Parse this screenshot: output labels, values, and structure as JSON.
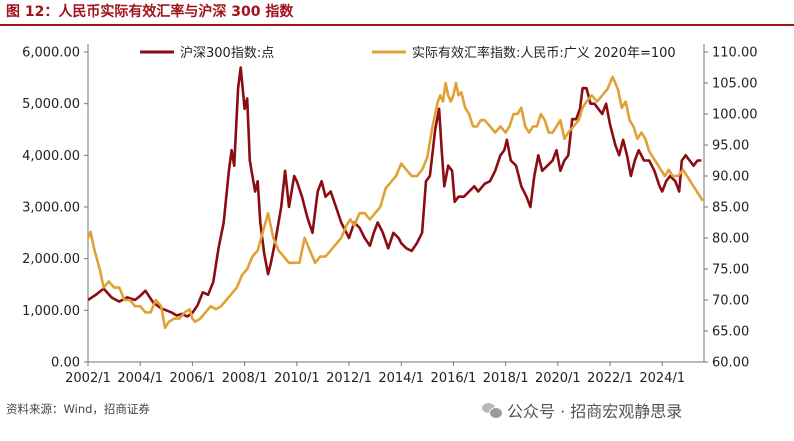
{
  "header": {
    "title": "图 12：人民币实际有效汇率与沪深 300 指数"
  },
  "footer": {
    "source": "资料来源：Wind，招商证券",
    "watermark": "公众号 · 招商宏观静思录",
    "watermark_icon": "wechat-icon"
  },
  "colors": {
    "hs300": "#8b0d12",
    "reer": "#e0a236",
    "title": "#a0141e"
  },
  "chart_data": {
    "type": "line",
    "title": "",
    "xlabel": "",
    "ylabel": "",
    "y2label": "",
    "grid": false,
    "legend_position": "top",
    "xlim": [
      2002.0,
      2025.6
    ],
    "ylim": [
      0,
      6000
    ],
    "y2lim": [
      60,
      110
    ],
    "x_ticks": [
      2002,
      2004,
      2006,
      2008,
      2010,
      2012,
      2014,
      2016,
      2018,
      2020,
      2022,
      2024
    ],
    "x_tick_labels": [
      "2002/1",
      "2004/1",
      "2006/1",
      "2008/1",
      "2010/1",
      "2012/1",
      "2014/1",
      "2016/1",
      "2018/1",
      "2020/1",
      "2022/1",
      "2024/1"
    ],
    "y_ticks": [
      0,
      1000,
      2000,
      3000,
      4000,
      5000,
      6000
    ],
    "y_tick_labels": [
      "0.00",
      "1,000.00",
      "2,000.00",
      "3,000.00",
      "4,000.00",
      "5,000.00",
      "6,000.00"
    ],
    "y2_ticks": [
      60,
      65,
      70,
      75,
      80,
      85,
      90,
      95,
      100,
      105,
      110
    ],
    "y2_tick_labels": [
      "60.00",
      "65.00",
      "70.00",
      "75.00",
      "80.00",
      "85.00",
      "90.00",
      "95.00",
      "100.00",
      "105.00",
      "110.00"
    ],
    "series": [
      {
        "name": "沪深300指数:点",
        "axis": "left",
        "color": "#8b0d12",
        "points": [
          [
            2002.0,
            1200
          ],
          [
            2002.3,
            1300
          ],
          [
            2002.6,
            1420
          ],
          [
            2002.9,
            1250
          ],
          [
            2003.2,
            1170
          ],
          [
            2003.5,
            1250
          ],
          [
            2003.8,
            1200
          ],
          [
            2004.0,
            1280
          ],
          [
            2004.2,
            1380
          ],
          [
            2004.5,
            1150
          ],
          [
            2004.8,
            1040
          ],
          [
            2005.0,
            1000
          ],
          [
            2005.2,
            960
          ],
          [
            2005.4,
            900
          ],
          [
            2005.6,
            930
          ],
          [
            2005.8,
            880
          ],
          [
            2006.0,
            950
          ],
          [
            2006.2,
            1100
          ],
          [
            2006.4,
            1350
          ],
          [
            2006.6,
            1300
          ],
          [
            2006.8,
            1550
          ],
          [
            2007.0,
            2200
          ],
          [
            2007.2,
            2700
          ],
          [
            2007.4,
            3700
          ],
          [
            2007.5,
            4100
          ],
          [
            2007.6,
            3800
          ],
          [
            2007.75,
            5300
          ],
          [
            2007.85,
            5700
          ],
          [
            2008.0,
            4900
          ],
          [
            2008.1,
            5100
          ],
          [
            2008.2,
            3900
          ],
          [
            2008.4,
            3300
          ],
          [
            2008.5,
            3500
          ],
          [
            2008.6,
            2700
          ],
          [
            2008.75,
            2100
          ],
          [
            2008.9,
            1700
          ],
          [
            2009.0,
            1900
          ],
          [
            2009.2,
            2400
          ],
          [
            2009.4,
            3000
          ],
          [
            2009.55,
            3700
          ],
          [
            2009.7,
            3000
          ],
          [
            2009.9,
            3600
          ],
          [
            2010.0,
            3500
          ],
          [
            2010.2,
            3200
          ],
          [
            2010.4,
            2800
          ],
          [
            2010.6,
            2500
          ],
          [
            2010.8,
            3300
          ],
          [
            2010.95,
            3500
          ],
          [
            2011.1,
            3200
          ],
          [
            2011.3,
            3300
          ],
          [
            2011.5,
            3000
          ],
          [
            2011.7,
            2700
          ],
          [
            2011.9,
            2500
          ],
          [
            2012.0,
            2400
          ],
          [
            2012.2,
            2700
          ],
          [
            2012.4,
            2600
          ],
          [
            2012.6,
            2400
          ],
          [
            2012.8,
            2250
          ],
          [
            2012.95,
            2500
          ],
          [
            2013.1,
            2700
          ],
          [
            2013.3,
            2500
          ],
          [
            2013.5,
            2200
          ],
          [
            2013.7,
            2500
          ],
          [
            2013.9,
            2400
          ],
          [
            2014.0,
            2300
          ],
          [
            2014.2,
            2200
          ],
          [
            2014.4,
            2150
          ],
          [
            2014.6,
            2300
          ],
          [
            2014.8,
            2500
          ],
          [
            2014.95,
            3500
          ],
          [
            2015.1,
            3600
          ],
          [
            2015.3,
            4500
          ],
          [
            2015.45,
            4900
          ],
          [
            2015.55,
            4100
          ],
          [
            2015.65,
            3400
          ],
          [
            2015.8,
            3800
          ],
          [
            2015.95,
            3700
          ],
          [
            2016.05,
            3100
          ],
          [
            2016.2,
            3200
          ],
          [
            2016.4,
            3200
          ],
          [
            2016.6,
            3300
          ],
          [
            2016.8,
            3400
          ],
          [
            2016.95,
            3300
          ],
          [
            2017.2,
            3450
          ],
          [
            2017.4,
            3500
          ],
          [
            2017.6,
            3700
          ],
          [
            2017.8,
            4000
          ],
          [
            2017.95,
            4100
          ],
          [
            2018.05,
            4300
          ],
          [
            2018.2,
            3900
          ],
          [
            2018.4,
            3800
          ],
          [
            2018.6,
            3400
          ],
          [
            2018.8,
            3200
          ],
          [
            2018.95,
            3000
          ],
          [
            2019.1,
            3600
          ],
          [
            2019.25,
            4000
          ],
          [
            2019.4,
            3700
          ],
          [
            2019.6,
            3800
          ],
          [
            2019.8,
            3900
          ],
          [
            2019.95,
            4100
          ],
          [
            2020.1,
            3700
          ],
          [
            2020.25,
            3900
          ],
          [
            2020.4,
            4000
          ],
          [
            2020.55,
            4700
          ],
          [
            2020.7,
            4700
          ],
          [
            2020.85,
            4900
          ],
          [
            2020.95,
            5300
          ],
          [
            2021.1,
            5300
          ],
          [
            2021.25,
            5000
          ],
          [
            2021.4,
            5000
          ],
          [
            2021.55,
            4900
          ],
          [
            2021.7,
            4800
          ],
          [
            2021.85,
            5000
          ],
          [
            2022.0,
            4600
          ],
          [
            2022.2,
            4200
          ],
          [
            2022.35,
            4000
          ],
          [
            2022.5,
            4300
          ],
          [
            2022.65,
            4000
          ],
          [
            2022.8,
            3600
          ],
          [
            2022.95,
            3900
          ],
          [
            2023.1,
            4100
          ],
          [
            2023.3,
            3900
          ],
          [
            2023.5,
            3900
          ],
          [
            2023.7,
            3700
          ],
          [
            2023.9,
            3400
          ],
          [
            2024.0,
            3300
          ],
          [
            2024.15,
            3500
          ],
          [
            2024.3,
            3600
          ],
          [
            2024.5,
            3500
          ],
          [
            2024.65,
            3300
          ],
          [
            2024.75,
            3900
          ],
          [
            2024.9,
            4000
          ],
          [
            2025.05,
            3900
          ],
          [
            2025.2,
            3800
          ],
          [
            2025.35,
            3900
          ],
          [
            2025.5,
            3900
          ]
        ]
      },
      {
        "name": "实际有效汇率指数:人民币:广义 2020年=100",
        "axis": "right",
        "color": "#e0a236",
        "points": [
          [
            2002.0,
            80
          ],
          [
            2002.1,
            81
          ],
          [
            2002.25,
            78
          ],
          [
            2002.45,
            75
          ],
          [
            2002.6,
            72
          ],
          [
            2002.8,
            73
          ],
          [
            2003.0,
            72
          ],
          [
            2003.2,
            72
          ],
          [
            2003.4,
            70
          ],
          [
            2003.6,
            70
          ],
          [
            2003.8,
            69
          ],
          [
            2004.0,
            69
          ],
          [
            2004.2,
            68
          ],
          [
            2004.4,
            68
          ],
          [
            2004.6,
            70
          ],
          [
            2004.8,
            69
          ],
          [
            2004.95,
            65.5
          ],
          [
            2005.1,
            66.5
          ],
          [
            2005.3,
            67
          ],
          [
            2005.5,
            67
          ],
          [
            2005.7,
            68
          ],
          [
            2005.9,
            68.5
          ],
          [
            2006.0,
            67
          ],
          [
            2006.1,
            66.5
          ],
          [
            2006.3,
            67
          ],
          [
            2006.5,
            68
          ],
          [
            2006.7,
            69
          ],
          [
            2006.9,
            68.5
          ],
          [
            2007.1,
            69
          ],
          [
            2007.3,
            70
          ],
          [
            2007.5,
            71
          ],
          [
            2007.7,
            72
          ],
          [
            2007.9,
            74
          ],
          [
            2008.1,
            75
          ],
          [
            2008.3,
            77
          ],
          [
            2008.5,
            78
          ],
          [
            2008.7,
            81
          ],
          [
            2008.9,
            84
          ],
          [
            2009.1,
            80
          ],
          [
            2009.3,
            78
          ],
          [
            2009.5,
            77
          ],
          [
            2009.7,
            76
          ],
          [
            2009.9,
            76
          ],
          [
            2010.1,
            76
          ],
          [
            2010.3,
            80
          ],
          [
            2010.5,
            78
          ],
          [
            2010.7,
            76
          ],
          [
            2010.9,
            77
          ],
          [
            2011.1,
            77
          ],
          [
            2011.3,
            78
          ],
          [
            2011.5,
            79
          ],
          [
            2011.7,
            80
          ],
          [
            2011.9,
            82
          ],
          [
            2012.05,
            83
          ],
          [
            2012.2,
            82
          ],
          [
            2012.4,
            84
          ],
          [
            2012.6,
            84
          ],
          [
            2012.8,
            83
          ],
          [
            2013.0,
            84
          ],
          [
            2013.2,
            85
          ],
          [
            2013.4,
            88
          ],
          [
            2013.6,
            89
          ],
          [
            2013.8,
            90
          ],
          [
            2014.0,
            92
          ],
          [
            2014.2,
            91
          ],
          [
            2014.4,
            90
          ],
          [
            2014.6,
            90
          ],
          [
            2014.8,
            91
          ],
          [
            2015.0,
            93
          ],
          [
            2015.2,
            98
          ],
          [
            2015.4,
            102
          ],
          [
            2015.5,
            103
          ],
          [
            2015.6,
            102
          ],
          [
            2015.7,
            105
          ],
          [
            2015.8,
            103
          ],
          [
            2015.9,
            102
          ],
          [
            2016.0,
            103
          ],
          [
            2016.1,
            105
          ],
          [
            2016.2,
            103
          ],
          [
            2016.3,
            103.5
          ],
          [
            2016.45,
            101
          ],
          [
            2016.6,
            100
          ],
          [
            2016.75,
            98
          ],
          [
            2016.9,
            98
          ],
          [
            2017.05,
            99
          ],
          [
            2017.2,
            99
          ],
          [
            2017.4,
            98
          ],
          [
            2017.6,
            97
          ],
          [
            2017.8,
            98
          ],
          [
            2018.0,
            97
          ],
          [
            2018.15,
            98
          ],
          [
            2018.3,
            100
          ],
          [
            2018.45,
            100
          ],
          [
            2018.6,
            101
          ],
          [
            2018.75,
            98
          ],
          [
            2018.9,
            97
          ],
          [
            2019.05,
            98
          ],
          [
            2019.2,
            98
          ],
          [
            2019.35,
            100
          ],
          [
            2019.5,
            99
          ],
          [
            2019.65,
            97
          ],
          [
            2019.8,
            97
          ],
          [
            2019.95,
            98
          ],
          [
            2020.1,
            99
          ],
          [
            2020.25,
            96
          ],
          [
            2020.4,
            97
          ],
          [
            2020.6,
            98
          ],
          [
            2020.8,
            99
          ],
          [
            2020.95,
            101
          ],
          [
            2021.1,
            102
          ],
          [
            2021.3,
            103
          ],
          [
            2021.5,
            102
          ],
          [
            2021.7,
            103
          ],
          [
            2021.9,
            104
          ],
          [
            2022.0,
            105
          ],
          [
            2022.1,
            106
          ],
          [
            2022.2,
            105
          ],
          [
            2022.3,
            104
          ],
          [
            2022.45,
            101
          ],
          [
            2022.6,
            102
          ],
          [
            2022.75,
            99
          ],
          [
            2022.9,
            98
          ],
          [
            2023.05,
            96
          ],
          [
            2023.2,
            97
          ],
          [
            2023.35,
            96
          ],
          [
            2023.5,
            94
          ],
          [
            2023.65,
            93
          ],
          [
            2023.8,
            92
          ],
          [
            2023.95,
            91
          ],
          [
            2024.1,
            90
          ],
          [
            2024.25,
            91
          ],
          [
            2024.4,
            90
          ],
          [
            2024.6,
            90
          ],
          [
            2024.8,
            91
          ],
          [
            2024.95,
            90
          ],
          [
            2025.1,
            89
          ],
          [
            2025.25,
            88
          ],
          [
            2025.4,
            87
          ],
          [
            2025.55,
            86
          ]
        ]
      }
    ]
  }
}
